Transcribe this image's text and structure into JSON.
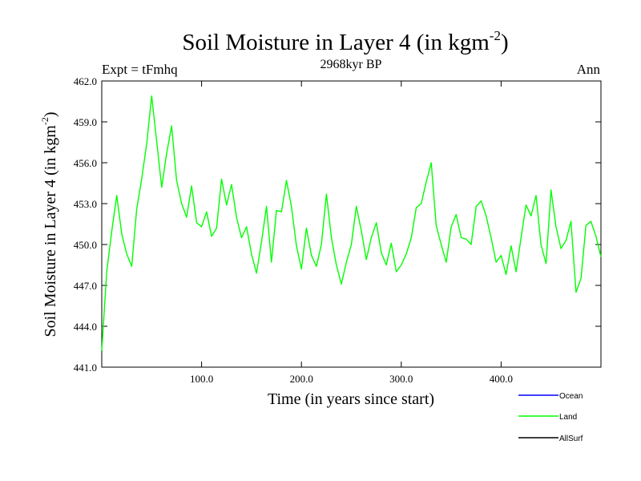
{
  "chart_data": {
    "type": "line",
    "title": "Soil Moisture in Layer 4 (in kgm",
    "title_exponent": "-2",
    "title_suffix": ")",
    "subtitle": "2968kyr BP",
    "left_label": "Expt = tFmhq",
    "right_label": "Ann",
    "xlabel": "Time (in years since start)",
    "ylabel": "Soil Moisture in Layer 4 (in kgm",
    "ylabel_exponent": "-2",
    "ylabel_suffix": ")",
    "xlim": [
      0,
      500
    ],
    "ylim": [
      441.0,
      462.0
    ],
    "x_ticks": [
      100,
      200,
      300,
      400
    ],
    "x_tick_labels": [
      "100.0",
      "200.0",
      "300.0",
      "400.0"
    ],
    "y_ticks": [
      441,
      444,
      447,
      450,
      453,
      456,
      459,
      462
    ],
    "y_tick_labels": [
      "441.0",
      "444.0",
      "447.0",
      "450.0",
      "453.0",
      "456.0",
      "459.0",
      "462.0"
    ],
    "legend": {
      "position": "bottom-right",
      "items": [
        {
          "name": "Ocean",
          "color": "#0000ff"
        },
        {
          "name": "Land",
          "color": "#00ff00"
        },
        {
          "name": "AllSurf",
          "color": "#000000"
        }
      ]
    },
    "series": [
      {
        "name": "Land",
        "color": "#00ff00",
        "x_step": 5,
        "x_start": 0,
        "values": [
          442.2,
          448.0,
          451.0,
          453.6,
          450.8,
          449.3,
          448.4,
          452.6,
          454.8,
          457.4,
          460.9,
          457.6,
          454.2,
          456.7,
          458.7,
          454.7,
          453.0,
          452.0,
          454.3,
          451.6,
          451.3,
          452.4,
          450.6,
          451.2,
          454.8,
          452.9,
          454.4,
          452.0,
          450.5,
          451.3,
          449.3,
          447.9,
          450.2,
          452.8,
          448.7,
          452.5,
          452.4,
          454.7,
          452.8,
          449.9,
          448.2,
          451.2,
          449.2,
          448.4,
          450.0,
          453.7,
          450.5,
          448.5,
          447.1,
          448.7,
          450.0,
          452.8,
          451.0,
          448.9,
          450.5,
          451.6,
          449.4,
          448.5,
          450.1,
          448.0,
          448.5,
          449.3,
          450.5,
          452.7,
          453.0,
          454.6,
          456.0,
          451.4,
          450.0,
          448.7,
          451.3,
          452.2,
          450.5,
          450.4,
          450.0,
          452.8,
          453.2,
          452.1,
          450.5,
          448.7,
          449.2,
          447.8,
          449.9,
          448.0,
          450.5,
          452.9,
          452.1,
          453.6,
          450.0,
          448.6,
          454.0,
          451.3,
          449.7,
          450.3,
          451.7,
          446.5,
          447.5,
          451.4,
          451.7,
          450.6,
          449.1
        ]
      }
    ]
  }
}
